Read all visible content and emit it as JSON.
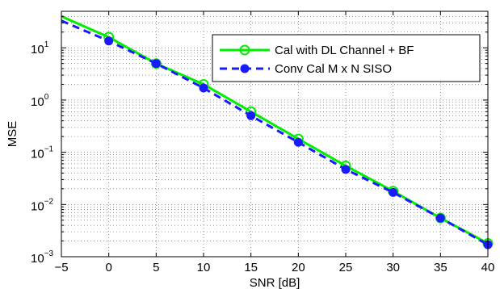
{
  "chart_data": {
    "type": "line",
    "title": "",
    "xlabel": "SNR [dB]",
    "ylabel": "MSE",
    "xlim": [
      -5,
      40
    ],
    "ylim": [
      0.001,
      50
    ],
    "yscale": "log",
    "grid": true,
    "legend_position": "top-right",
    "x_ticks": [
      -5,
      0,
      5,
      10,
      15,
      20,
      25,
      30,
      35,
      40
    ],
    "x_tick_labels": [
      "−5",
      "0",
      "5",
      "10",
      "15",
      "20",
      "25",
      "30",
      "35",
      "40"
    ],
    "y_ticks": [
      {
        "value": 0.001,
        "base": "10",
        "exp": "−3"
      },
      {
        "value": 0.01,
        "base": "10",
        "exp": "−2"
      },
      {
        "value": 0.1,
        "base": "10",
        "exp": "−1"
      },
      {
        "value": 1,
        "base": "10",
        "exp": "0"
      },
      {
        "value": 10,
        "base": "10",
        "exp": "1"
      }
    ],
    "series": [
      {
        "name": "Cal with DL Channel + BF",
        "color": "#00ee00",
        "line_style": "solid",
        "marker": "open-circle",
        "x": [
          -5,
          0,
          5,
          10,
          15,
          20,
          25,
          30,
          35,
          40
        ],
        "y": [
          40,
          16,
          5.0,
          2.0,
          0.6,
          0.18,
          0.055,
          0.018,
          0.0055,
          0.0018
        ],
        "marker_x": [
          0,
          5,
          10,
          15,
          20,
          25,
          30,
          35,
          40
        ]
      },
      {
        "name": "Conv Cal M x N SISO",
        "color": "#1a1aff",
        "line_style": "dashed",
        "marker": "filled-circle",
        "x": [
          -5,
          0,
          5,
          10,
          15,
          20,
          25,
          30,
          35,
          40
        ],
        "y": [
          33,
          13.5,
          5.0,
          1.7,
          0.5,
          0.155,
          0.047,
          0.017,
          0.0055,
          0.0017
        ],
        "marker_x": [
          0,
          5,
          10,
          15,
          20,
          25,
          30,
          35,
          40
        ]
      }
    ]
  }
}
